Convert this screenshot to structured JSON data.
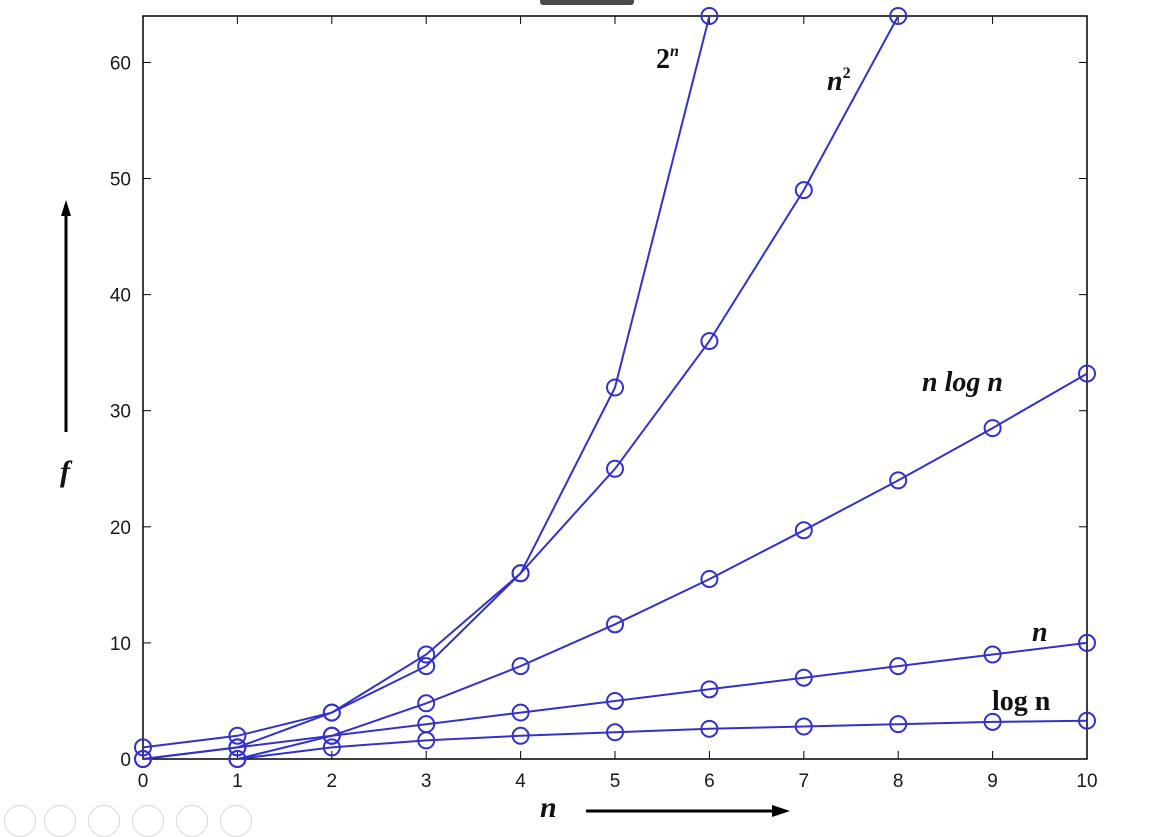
{
  "chart_data": {
    "type": "line",
    "x": [
      0,
      1,
      2,
      3,
      4,
      5,
      6,
      7,
      8,
      9,
      10
    ],
    "xlim": [
      0,
      10
    ],
    "ylim": [
      0,
      64
    ],
    "x_ticks": [
      "0",
      "1",
      "2",
      "3",
      "4",
      "5",
      "6",
      "7",
      "8",
      "9",
      "10"
    ],
    "y_ticks": [
      "0",
      "10",
      "20",
      "30",
      "40",
      "50",
      "60"
    ],
    "xlabel": "n",
    "ylabel": "f",
    "grid": false,
    "marker": "circle",
    "series_color": "#3232c8",
    "series": [
      {
        "name": "log n",
        "x": [
          1,
          2,
          3,
          4,
          5,
          6,
          7,
          8,
          9,
          10
        ],
        "values": [
          0,
          1,
          1.6,
          2,
          2.3,
          2.6,
          2.8,
          3,
          3.2,
          3.3
        ]
      },
      {
        "name": "n",
        "x": [
          0,
          1,
          2,
          3,
          4,
          5,
          6,
          7,
          8,
          9,
          10
        ],
        "values": [
          0,
          1,
          2,
          3,
          4,
          5,
          6,
          7,
          8,
          9,
          10
        ]
      },
      {
        "name": "n log n",
        "x": [
          1,
          2,
          3,
          4,
          5,
          6,
          7,
          8,
          9,
          10
        ],
        "values": [
          0,
          2,
          4.8,
          8,
          11.6,
          15.5,
          19.7,
          24,
          28.5,
          33.2
        ]
      },
      {
        "name": "n2",
        "x": [
          0,
          1,
          2,
          3,
          4,
          5,
          6,
          7,
          8
        ],
        "values": [
          0,
          1,
          4,
          9,
          16,
          25,
          36,
          49,
          64
        ]
      },
      {
        "name": "2n",
        "x": [
          0,
          1,
          2,
          3,
          4,
          5,
          6
        ],
        "values": [
          1,
          2,
          4,
          8,
          16,
          32,
          64
        ]
      }
    ],
    "annotations": [
      {
        "series": "2n",
        "base": "2",
        "sup": "n"
      },
      {
        "series": "n2",
        "base": "n",
        "sup": "2"
      },
      {
        "series": "n log n",
        "text": "n log n"
      },
      {
        "series": "n",
        "text": "n"
      },
      {
        "series": "log n",
        "text": "log n"
      }
    ]
  }
}
